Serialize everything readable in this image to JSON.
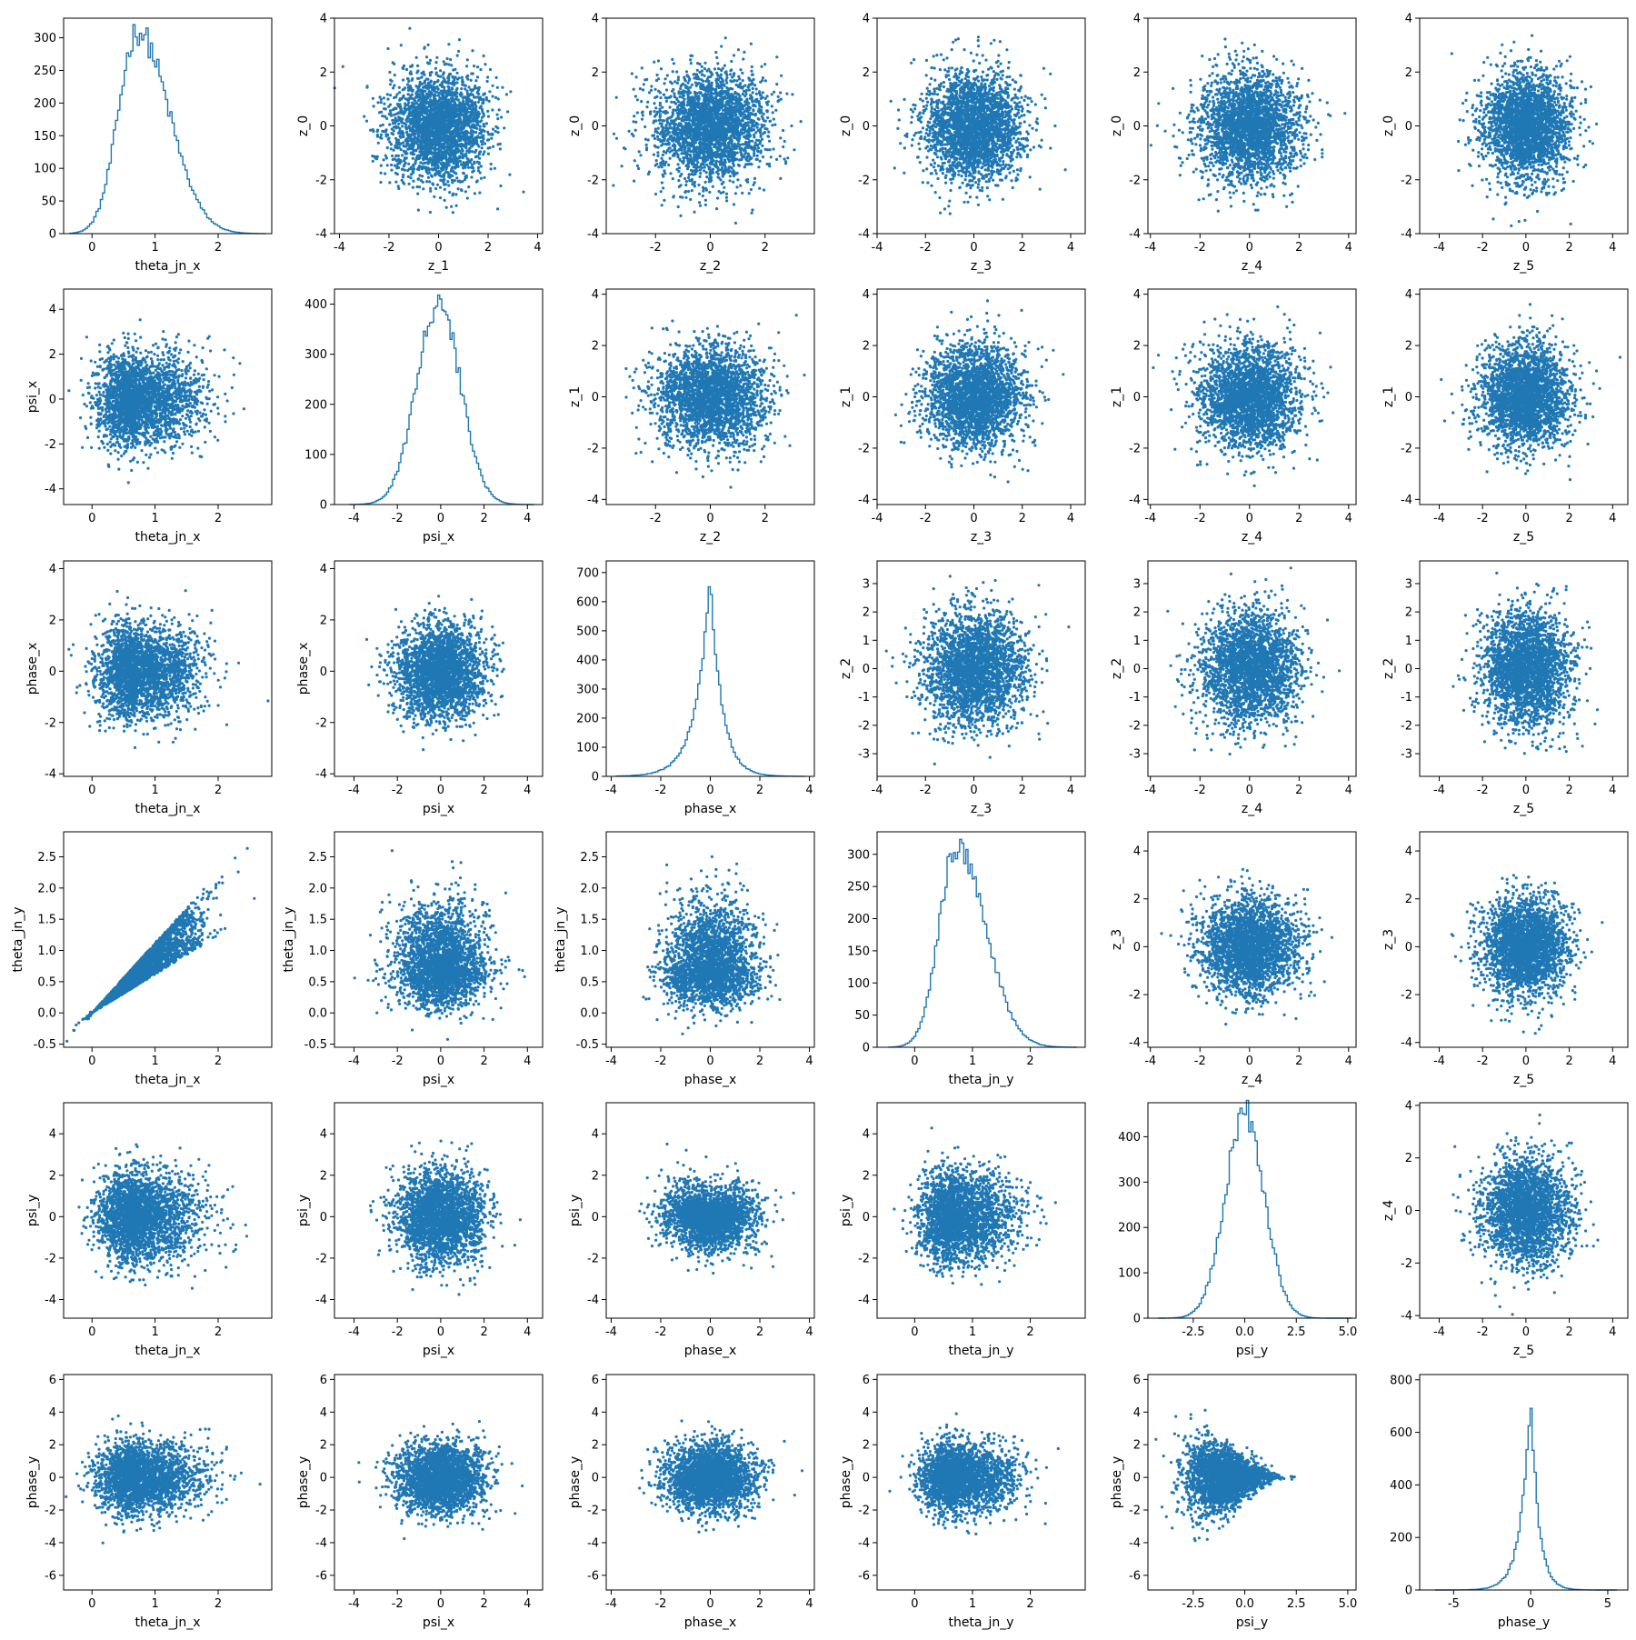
{
  "figure": {
    "rows": 6,
    "cols": 6,
    "point_color": "#1f77b4",
    "line_color": "#1f77b4",
    "background": "#ffffff"
  },
  "chart_data": [
    {
      "type": "histogram",
      "row": 0,
      "col": 0,
      "xlabel": "theta_jn_x",
      "ylabel": "",
      "xlim": [
        -0.45,
        2.85
      ],
      "ylim": [
        0,
        330
      ],
      "xticks": [
        0,
        1,
        2
      ],
      "yticks": [
        0,
        50,
        100,
        150,
        200,
        250,
        300
      ],
      "distribution": {
        "kind": "skew",
        "mode": 0.72,
        "peak": 310,
        "left_width": 0.3,
        "right_width": 0.5,
        "min": -0.35,
        "max": 2.75
      }
    },
    {
      "type": "scatter",
      "row": 0,
      "col": 1,
      "xlabel": "z_1",
      "ylabel": "z_0",
      "xlim": [
        -4.2,
        4.2
      ],
      "ylim": [
        -4,
        4
      ],
      "xticks": [
        -4,
        -2,
        0,
        2,
        4
      ],
      "yticks": [
        -4,
        -2,
        0,
        2,
        4
      ],
      "distribution": {
        "kind": "gaussian",
        "cx": 0,
        "cy": 0,
        "sx": 1,
        "sy": 1
      }
    },
    {
      "type": "scatter",
      "row": 0,
      "col": 2,
      "xlabel": "z_2",
      "ylabel": "z_0",
      "xlim": [
        -3.8,
        3.8
      ],
      "ylim": [
        -4,
        4
      ],
      "xticks": [
        -2,
        0,
        2
      ],
      "yticks": [
        -4,
        -2,
        0,
        2,
        4
      ],
      "distribution": {
        "kind": "gaussian",
        "cx": 0,
        "cy": 0,
        "sx": 1,
        "sy": 1
      }
    },
    {
      "type": "scatter",
      "row": 0,
      "col": 3,
      "xlabel": "z_3",
      "ylabel": "z_0",
      "xlim": [
        -4.0,
        4.6
      ],
      "ylim": [
        -4,
        4
      ],
      "xticks": [
        -4,
        -2,
        0,
        2,
        4
      ],
      "yticks": [
        -4,
        -2,
        0,
        2,
        4
      ],
      "distribution": {
        "kind": "gaussian",
        "cx": 0,
        "cy": 0,
        "sx": 1,
        "sy": 1
      }
    },
    {
      "type": "scatter",
      "row": 0,
      "col": 4,
      "xlabel": "z_4",
      "ylabel": "z_0",
      "xlim": [
        -4.1,
        4.3
      ],
      "ylim": [
        -4,
        4
      ],
      "xticks": [
        -4,
        -2,
        0,
        2,
        4
      ],
      "yticks": [
        -4,
        -2,
        0,
        2,
        4
      ],
      "distribution": {
        "kind": "gaussian",
        "cx": 0,
        "cy": 0,
        "sx": 1,
        "sy": 1
      }
    },
    {
      "type": "scatter",
      "row": 0,
      "col": 5,
      "xlabel": "z_5",
      "ylabel": "z_0",
      "xlim": [
        -4.9,
        4.7
      ],
      "ylim": [
        -4,
        4
      ],
      "xticks": [
        -4,
        -2,
        0,
        2,
        4
      ],
      "yticks": [
        -4,
        -2,
        0,
        2,
        4
      ],
      "distribution": {
        "kind": "gaussian",
        "cx": 0,
        "cy": 0,
        "sx": 1,
        "sy": 1
      }
    },
    {
      "type": "scatter",
      "row": 1,
      "col": 0,
      "xlabel": "theta_jn_x",
      "ylabel": "psi_x",
      "xlim": [
        -0.45,
        2.85
      ],
      "ylim": [
        -4.7,
        4.9
      ],
      "xticks": [
        0,
        1,
        2
      ],
      "yticks": [
        -4,
        -2,
        0,
        2,
        4
      ],
      "distribution": {
        "kind": "skewx",
        "mode": 0.72,
        "lw": 0.3,
        "rw": 0.5,
        "cy": 0,
        "sy": 1.05
      }
    },
    {
      "type": "histogram",
      "row": 1,
      "col": 1,
      "xlabel": "psi_x",
      "ylabel": "",
      "xlim": [
        -4.9,
        4.7
      ],
      "ylim": [
        0,
        430
      ],
      "xticks": [
        -4,
        -2,
        0,
        2,
        4
      ],
      "yticks": [
        0,
        100,
        200,
        300,
        400
      ],
      "distribution": {
        "kind": "gaussian",
        "mode": -0.1,
        "peak": 405,
        "left_width": 1.0,
        "right_width": 1.0,
        "min": -4.2,
        "max": 4.3
      }
    },
    {
      "type": "scatter",
      "row": 1,
      "col": 2,
      "xlabel": "z_2",
      "ylabel": "z_1",
      "xlim": [
        -3.8,
        3.8
      ],
      "ylim": [
        -4.2,
        4.2
      ],
      "xticks": [
        -2,
        0,
        2
      ],
      "yticks": [
        -4,
        -2,
        0,
        2,
        4
      ],
      "distribution": {
        "kind": "gaussian",
        "cx": 0,
        "cy": 0,
        "sx": 1,
        "sy": 1
      }
    },
    {
      "type": "scatter",
      "row": 1,
      "col": 3,
      "xlabel": "z_3",
      "ylabel": "z_1",
      "xlim": [
        -4.0,
        4.6
      ],
      "ylim": [
        -4.2,
        4.2
      ],
      "xticks": [
        -4,
        -2,
        0,
        2,
        4
      ],
      "yticks": [
        -4,
        -2,
        0,
        2,
        4
      ],
      "distribution": {
        "kind": "gaussian",
        "cx": 0,
        "cy": 0,
        "sx": 1,
        "sy": 1
      }
    },
    {
      "type": "scatter",
      "row": 1,
      "col": 4,
      "xlabel": "z_4",
      "ylabel": "z_1",
      "xlim": [
        -4.1,
        4.3
      ],
      "ylim": [
        -4.2,
        4.2
      ],
      "xticks": [
        -4,
        -2,
        0,
        2,
        4
      ],
      "yticks": [
        -4,
        -2,
        0,
        2,
        4
      ],
      "distribution": {
        "kind": "gaussian",
        "cx": 0,
        "cy": 0,
        "sx": 1,
        "sy": 1
      }
    },
    {
      "type": "scatter",
      "row": 1,
      "col": 5,
      "xlabel": "z_5",
      "ylabel": "z_1",
      "xlim": [
        -4.9,
        4.7
      ],
      "ylim": [
        -4.2,
        4.2
      ],
      "xticks": [
        -4,
        -2,
        0,
        2,
        4
      ],
      "yticks": [
        -4,
        -2,
        0,
        2,
        4
      ],
      "distribution": {
        "kind": "gaussian",
        "cx": 0,
        "cy": 0,
        "sx": 1,
        "sy": 1
      }
    },
    {
      "type": "scatter",
      "row": 2,
      "col": 0,
      "xlabel": "theta_jn_x",
      "ylabel": "phase_x",
      "xlim": [
        -0.45,
        2.85
      ],
      "ylim": [
        -4.1,
        4.3
      ],
      "xticks": [
        0,
        1,
        2
      ],
      "yticks": [
        -4,
        -2,
        0,
        2,
        4
      ],
      "distribution": {
        "kind": "skewx",
        "mode": 0.72,
        "lw": 0.3,
        "rw": 0.5,
        "cy": 0,
        "sy": 0.9
      }
    },
    {
      "type": "scatter",
      "row": 2,
      "col": 1,
      "xlabel": "psi_x",
      "ylabel": "phase_x",
      "xlim": [
        -4.9,
        4.7
      ],
      "ylim": [
        -4.1,
        4.3
      ],
      "xticks": [
        -4,
        -2,
        0,
        2,
        4
      ],
      "yticks": [
        -4,
        -2,
        0,
        2,
        4
      ],
      "distribution": {
        "kind": "gaussian",
        "cx": 0,
        "cy": 0,
        "sx": 1,
        "sy": 0.9
      }
    },
    {
      "type": "histogram",
      "row": 2,
      "col": 2,
      "xlabel": "phase_x",
      "ylabel": "",
      "xlim": [
        -4.2,
        4.2
      ],
      "ylim": [
        0,
        740
      ],
      "xticks": [
        -4,
        -2,
        0,
        2,
        4
      ],
      "yticks": [
        0,
        100,
        200,
        300,
        400,
        500,
        600,
        700
      ],
      "distribution": {
        "kind": "laplace",
        "mode": 0,
        "peak": 680,
        "left_width": 0.75,
        "right_width": 0.6,
        "min": -3.8,
        "max": 3.8
      }
    },
    {
      "type": "scatter",
      "row": 2,
      "col": 3,
      "xlabel": "z_3",
      "ylabel": "z_2",
      "xlim": [
        -4.0,
        4.6
      ],
      "ylim": [
        -3.8,
        3.8
      ],
      "xticks": [
        -4,
        -2,
        0,
        2,
        4
      ],
      "yticks": [
        -3,
        -2,
        -1,
        0,
        1,
        2,
        3
      ],
      "distribution": {
        "kind": "gaussian",
        "cx": 0,
        "cy": 0,
        "sx": 1,
        "sy": 1
      }
    },
    {
      "type": "scatter",
      "row": 2,
      "col": 4,
      "xlabel": "z_4",
      "ylabel": "z_2",
      "xlim": [
        -4.1,
        4.3
      ],
      "ylim": [
        -3.8,
        3.8
      ],
      "xticks": [
        -4,
        -2,
        0,
        2,
        4
      ],
      "yticks": [
        -3,
        -2,
        -1,
        0,
        1,
        2,
        3
      ],
      "distribution": {
        "kind": "gaussian",
        "cx": 0,
        "cy": 0,
        "sx": 1,
        "sy": 1
      }
    },
    {
      "type": "scatter",
      "row": 2,
      "col": 5,
      "xlabel": "z_5",
      "ylabel": "z_2",
      "xlim": [
        -4.9,
        4.7
      ],
      "ylim": [
        -3.8,
        3.8
      ],
      "xticks": [
        -4,
        -2,
        0,
        2,
        4
      ],
      "yticks": [
        -3,
        -2,
        -1,
        0,
        1,
        2,
        3
      ],
      "distribution": {
        "kind": "gaussian",
        "cx": 0,
        "cy": 0,
        "sx": 1,
        "sy": 1
      }
    },
    {
      "type": "scatter",
      "row": 3,
      "col": 0,
      "xlabel": "theta_jn_x",
      "ylabel": "theta_jn_y",
      "xlim": [
        -0.45,
        2.85
      ],
      "ylim": [
        -0.55,
        2.9
      ],
      "xticks": [
        0,
        1,
        2
      ],
      "yticks": [
        -0.5,
        0.0,
        0.5,
        1.0,
        1.5,
        2.0,
        2.5
      ],
      "tick_decimals": 1,
      "distribution": {
        "kind": "wedge",
        "mode": 0.72,
        "lw": 0.3,
        "rw": 0.5,
        "slope_lo": 0.62,
        "slope_hi": 1.12
      }
    },
    {
      "type": "scatter",
      "row": 3,
      "col": 1,
      "xlabel": "psi_x",
      "ylabel": "theta_jn_y",
      "xlim": [
        -4.9,
        4.7
      ],
      "ylim": [
        -0.55,
        2.9
      ],
      "xticks": [
        -4,
        -2,
        0,
        2,
        4
      ],
      "yticks": [
        -0.5,
        0.0,
        0.5,
        1.0,
        1.5,
        2.0,
        2.5
      ],
      "tick_decimals": 1,
      "distribution": {
        "kind": "skewy",
        "cx": 0,
        "sx": 1.05,
        "mode": 0.72,
        "lw": 0.3,
        "rw": 0.5
      }
    },
    {
      "type": "scatter",
      "row": 3,
      "col": 2,
      "xlabel": "phase_x",
      "ylabel": "theta_jn_y",
      "xlim": [
        -4.2,
        4.2
      ],
      "ylim": [
        -0.55,
        2.9
      ],
      "xticks": [
        -4,
        -2,
        0,
        2,
        4
      ],
      "yticks": [
        -0.5,
        0.0,
        0.5,
        1.0,
        1.5,
        2.0,
        2.5
      ],
      "tick_decimals": 1,
      "distribution": {
        "kind": "skewy",
        "cx": 0,
        "sx": 0.9,
        "mode": 0.72,
        "lw": 0.3,
        "rw": 0.5
      }
    },
    {
      "type": "histogram",
      "row": 3,
      "col": 3,
      "xlabel": "theta_jn_y",
      "ylabel": "",
      "xlim": [
        -0.65,
        2.95
      ],
      "ylim": [
        0,
        335
      ],
      "xticks": [
        0,
        1,
        2
      ],
      "yticks": [
        0,
        50,
        100,
        150,
        200,
        250,
        300
      ],
      "distribution": {
        "kind": "skew",
        "mode": 0.72,
        "peak": 312,
        "left_width": 0.3,
        "right_width": 0.5,
        "min": -0.45,
        "max": 2.8
      }
    },
    {
      "type": "scatter",
      "row": 3,
      "col": 4,
      "xlabel": "z_4",
      "ylabel": "z_3",
      "xlim": [
        -4.1,
        4.3
      ],
      "ylim": [
        -4.2,
        4.8
      ],
      "xticks": [
        -4,
        -2,
        0,
        2,
        4
      ],
      "yticks": [
        -4,
        -2,
        0,
        2,
        4
      ],
      "distribution": {
        "kind": "gaussian",
        "cx": 0,
        "cy": 0,
        "sx": 1,
        "sy": 1
      }
    },
    {
      "type": "scatter",
      "row": 3,
      "col": 5,
      "xlabel": "z_5",
      "ylabel": "z_3",
      "xlim": [
        -4.9,
        4.7
      ],
      "ylim": [
        -4.2,
        4.8
      ],
      "xticks": [
        -4,
        -2,
        0,
        2,
        4
      ],
      "yticks": [
        -4,
        -2,
        0,
        2,
        4
      ],
      "distribution": {
        "kind": "gaussian",
        "cx": 0,
        "cy": 0,
        "sx": 1,
        "sy": 1
      }
    },
    {
      "type": "scatter",
      "row": 4,
      "col": 0,
      "xlabel": "theta_jn_x",
      "ylabel": "psi_y",
      "xlim": [
        -0.45,
        2.85
      ],
      "ylim": [
        -4.9,
        5.5
      ],
      "xticks": [
        0,
        1,
        2
      ],
      "yticks": [
        -4,
        -2,
        0,
        2,
        4
      ],
      "distribution": {
        "kind": "skewx",
        "mode": 0.72,
        "lw": 0.3,
        "rw": 0.5,
        "cy": 0,
        "sy": 1.1
      }
    },
    {
      "type": "scatter",
      "row": 4,
      "col": 1,
      "xlabel": "psi_x",
      "ylabel": "psi_y",
      "xlim": [
        -4.9,
        4.7
      ],
      "ylim": [
        -4.9,
        5.5
      ],
      "xticks": [
        -4,
        -2,
        0,
        2,
        4
      ],
      "yticks": [
        -4,
        -2,
        0,
        2,
        4
      ],
      "distribution": {
        "kind": "gaussian",
        "cx": 0,
        "cy": 0,
        "sx": 1,
        "sy": 1.1
      }
    },
    {
      "type": "scatter",
      "row": 4,
      "col": 2,
      "xlabel": "phase_x",
      "ylabel": "psi_y",
      "xlim": [
        -4.2,
        4.2
      ],
      "ylim": [
        -4.9,
        5.5
      ],
      "xticks": [
        -4,
        -2,
        0,
        2,
        4
      ],
      "yticks": [
        -4,
        -2,
        0,
        2,
        4
      ],
      "distribution": {
        "kind": "funnel",
        "cx": 0,
        "sx": 0.9,
        "cy": 0,
        "sy": 1.1
      }
    },
    {
      "type": "scatter",
      "row": 4,
      "col": 3,
      "xlabel": "theta_jn_y",
      "ylabel": "psi_y",
      "xlim": [
        -0.65,
        2.95
      ],
      "ylim": [
        -4.9,
        5.5
      ],
      "xticks": [
        0,
        1,
        2
      ],
      "yticks": [
        -4,
        -2,
        0,
        2,
        4
      ],
      "distribution": {
        "kind": "skewx",
        "mode": 0.72,
        "lw": 0.3,
        "rw": 0.5,
        "cy": 0,
        "sy": 1.1
      }
    },
    {
      "type": "histogram",
      "row": 4,
      "col": 4,
      "xlabel": "psi_y",
      "ylabel": "",
      "xlim": [
        -4.7,
        5.4
      ],
      "ylim": [
        0,
        475
      ],
      "xticks": [
        -2.5,
        0.0,
        2.5,
        5.0
      ],
      "yticks": [
        0,
        100,
        200,
        300,
        400
      ],
      "tick_decimals_x": 1,
      "distribution": {
        "kind": "gaussian",
        "mode": 0,
        "peak": 455,
        "left_width": 0.95,
        "right_width": 0.95,
        "min": -4.2,
        "max": 5.2
      }
    },
    {
      "type": "scatter",
      "row": 4,
      "col": 5,
      "xlabel": "z_5",
      "ylabel": "z_4",
      "xlim": [
        -4.9,
        4.7
      ],
      "ylim": [
        -4.1,
        4.1
      ],
      "xticks": [
        -4,
        -2,
        0,
        2,
        4
      ],
      "yticks": [
        -4,
        -2,
        0,
        2,
        4
      ],
      "distribution": {
        "kind": "gaussian",
        "cx": 0,
        "cy": 0,
        "sx": 1,
        "sy": 1
      }
    },
    {
      "type": "scatter",
      "row": 5,
      "col": 0,
      "xlabel": "theta_jn_x",
      "ylabel": "phase_y",
      "xlim": [
        -0.45,
        2.85
      ],
      "ylim": [
        -6.9,
        6.3
      ],
      "xticks": [
        0,
        1,
        2
      ],
      "yticks": [
        -6,
        -4,
        -2,
        0,
        2,
        4,
        6
      ],
      "distribution": {
        "kind": "skewx",
        "mode": 0.72,
        "lw": 0.3,
        "rw": 0.5,
        "cy": 0,
        "sy": 1.05
      }
    },
    {
      "type": "scatter",
      "row": 5,
      "col": 1,
      "xlabel": "psi_x",
      "ylabel": "phase_y",
      "xlim": [
        -4.9,
        4.7
      ],
      "ylim": [
        -6.9,
        6.3
      ],
      "xticks": [
        -4,
        -2,
        0,
        2,
        4
      ],
      "yticks": [
        -6,
        -4,
        -2,
        0,
        2,
        4,
        6
      ],
      "distribution": {
        "kind": "gaussian",
        "cx": 0,
        "cy": 0,
        "sx": 1.0,
        "sy": 1.05
      }
    },
    {
      "type": "scatter",
      "row": 5,
      "col": 2,
      "xlabel": "phase_x",
      "ylabel": "phase_y",
      "xlim": [
        -4.2,
        4.2
      ],
      "ylim": [
        -6.9,
        6.3
      ],
      "xticks": [
        -4,
        -2,
        0,
        2,
        4
      ],
      "yticks": [
        -6,
        -4,
        -2,
        0,
        2,
        4,
        6
      ],
      "distribution": {
        "kind": "gaussian",
        "cx": 0,
        "cy": 0,
        "sx": 0.9,
        "sy": 1.05
      }
    },
    {
      "type": "scatter",
      "row": 5,
      "col": 3,
      "xlabel": "theta_jn_y",
      "ylabel": "phase_y",
      "xlim": [
        -0.65,
        2.95
      ],
      "ylim": [
        -6.9,
        6.3
      ],
      "xticks": [
        0,
        1,
        2
      ],
      "yticks": [
        -6,
        -4,
        -2,
        0,
        2,
        4,
        6
      ],
      "distribution": {
        "kind": "skewx",
        "mode": 0.72,
        "lw": 0.3,
        "rw": 0.5,
        "cy": 0,
        "sy": 1.05
      }
    },
    {
      "type": "scatter",
      "row": 5,
      "col": 4,
      "xlabel": "psi_y",
      "ylabel": "phase_y",
      "xlim": [
        -4.7,
        5.4
      ],
      "ylim": [
        -6.9,
        6.3
      ],
      "xticks": [
        -2.5,
        0.0,
        2.5,
        5.0
      ],
      "yticks": [
        -6,
        -4,
        -2,
        0,
        2,
        4,
        6
      ],
      "tick_decimals_x": 1,
      "distribution": {
        "kind": "cone",
        "cx": -0.9,
        "sx": 1.0,
        "cy": 0,
        "sy": 1.3
      }
    },
    {
      "type": "histogram",
      "row": 5,
      "col": 5,
      "xlabel": "phase_y",
      "ylabel": "",
      "xlim": [
        -7.2,
        6.3
      ],
      "ylim": [
        0,
        820
      ],
      "xticks": [
        -5,
        0,
        5
      ],
      "yticks": [
        0,
        200,
        400,
        600,
        800
      ],
      "distribution": {
        "kind": "laplace",
        "mode": 0,
        "peak": 770,
        "left_width": 0.8,
        "right_width": 0.65,
        "min": -6.2,
        "max": 5.6
      }
    }
  ]
}
